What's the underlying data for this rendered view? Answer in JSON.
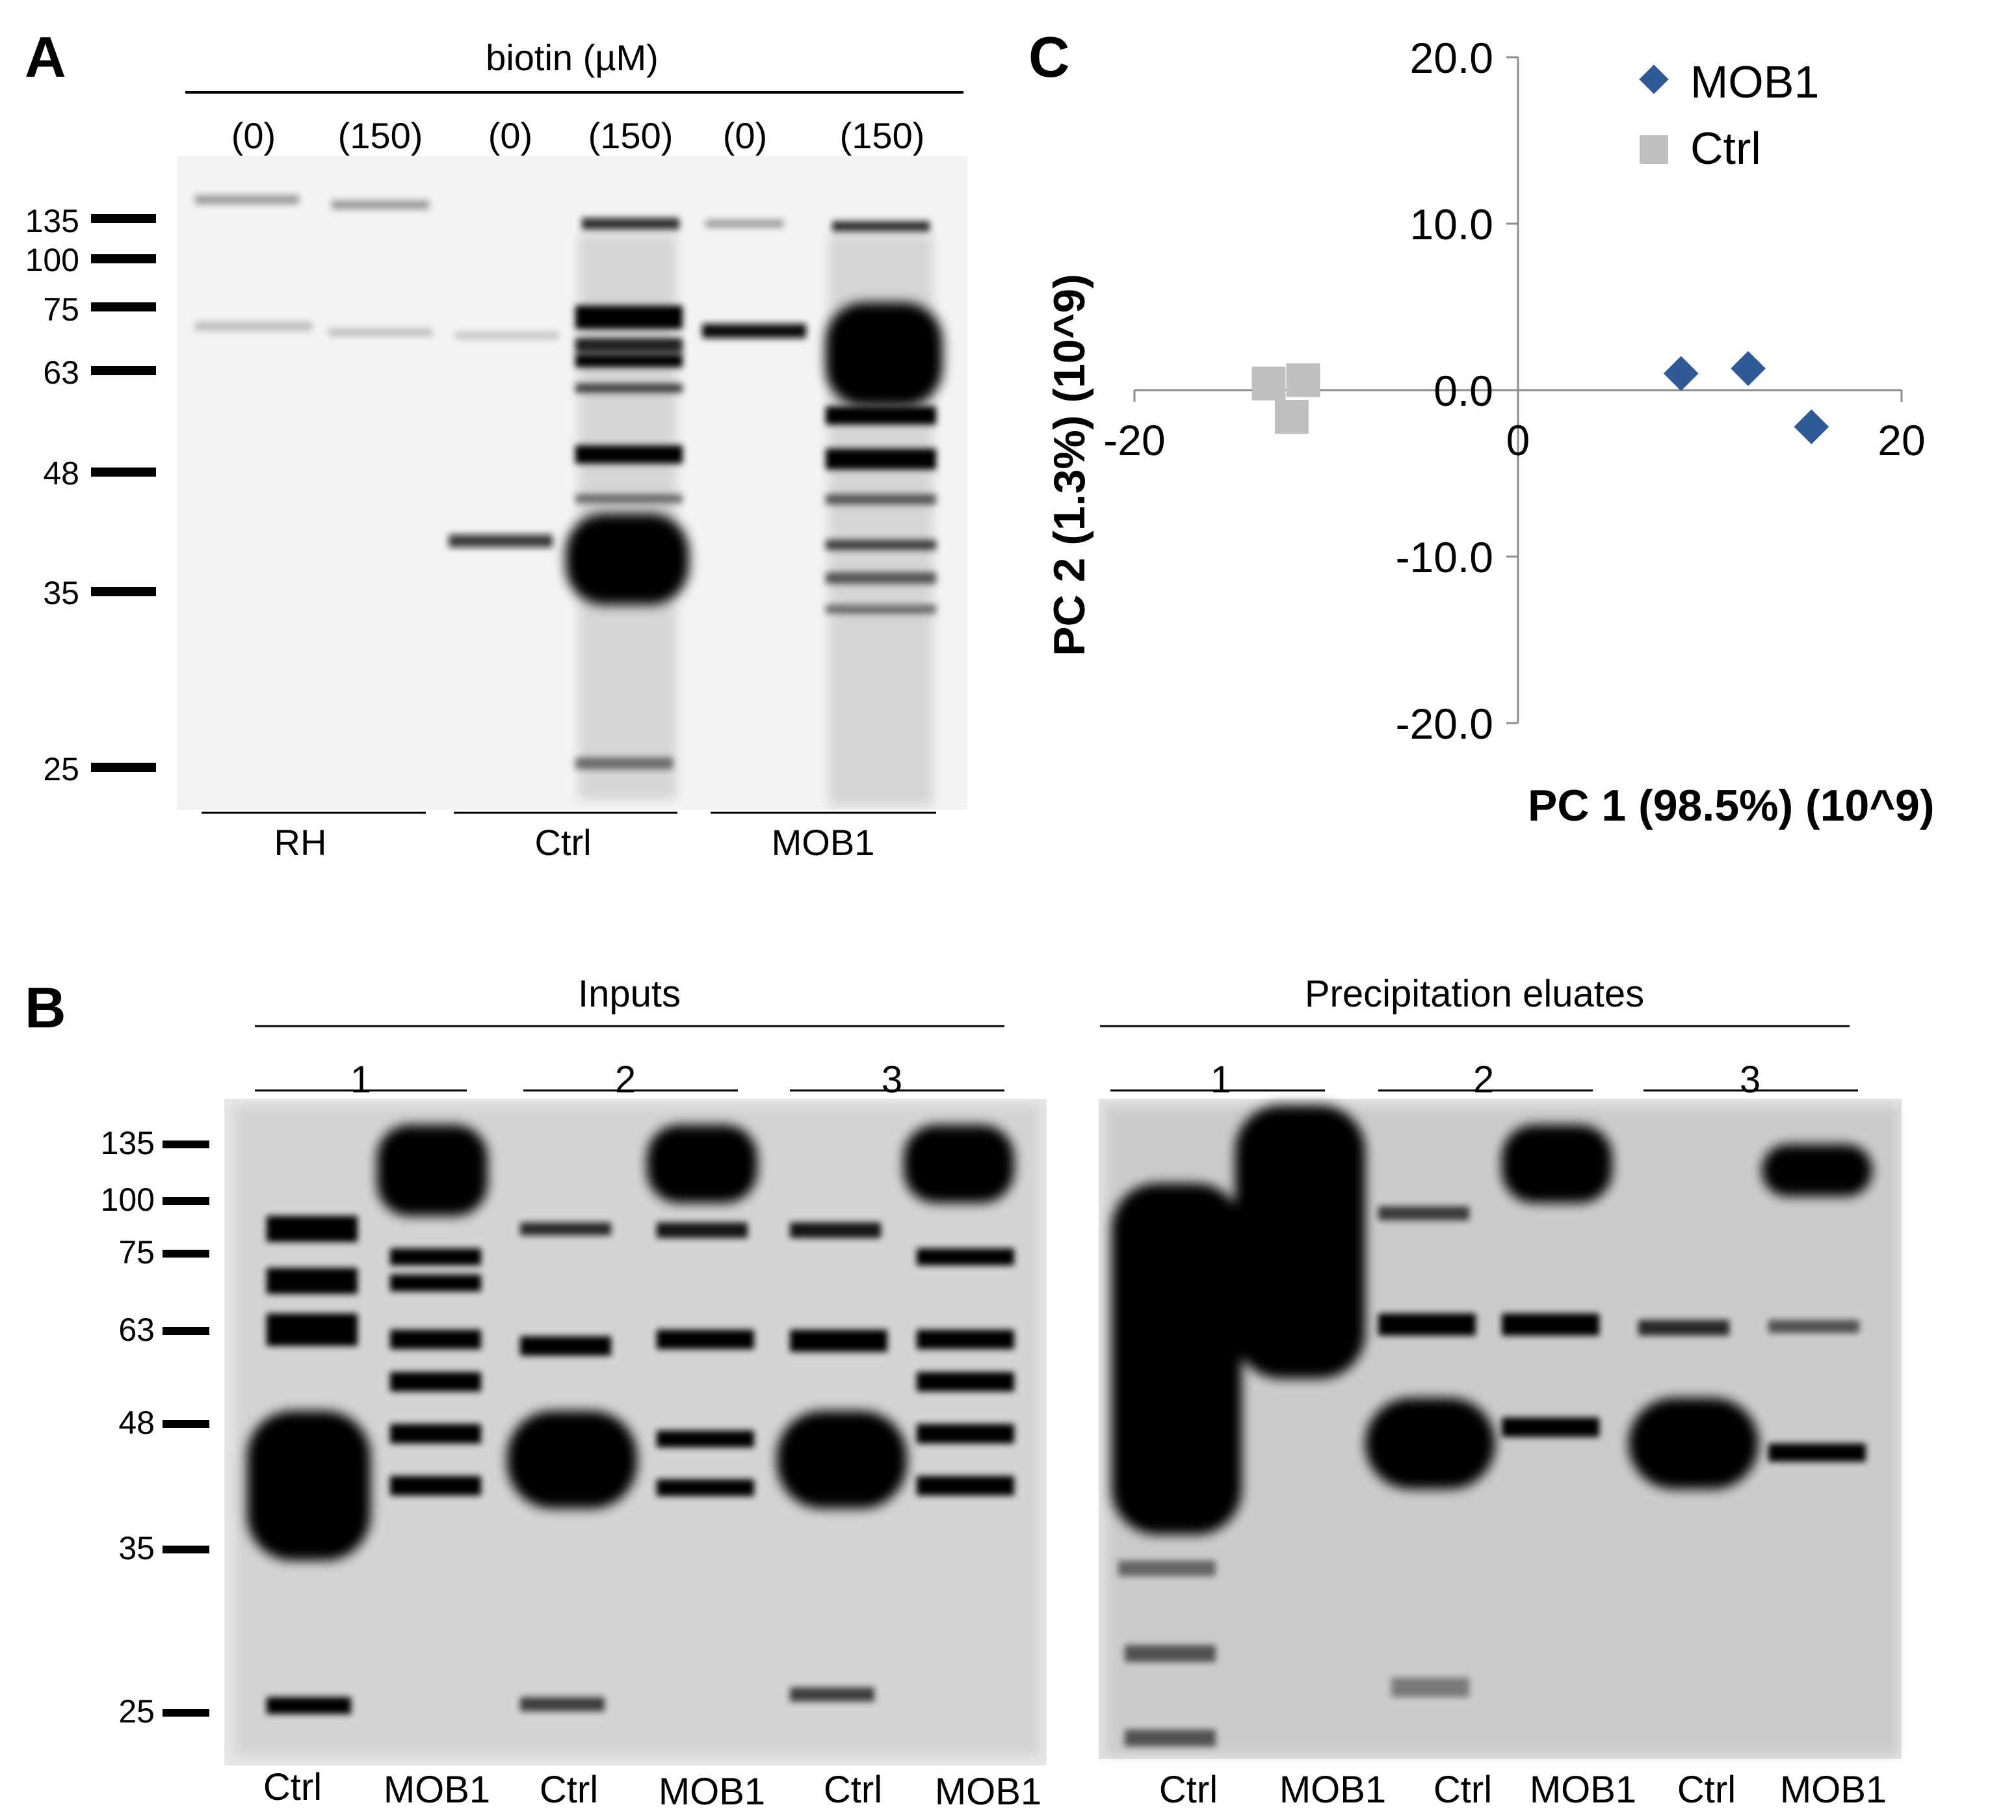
{
  "panels": {
    "a": {
      "label": "A",
      "treatment_label": "biotin (µM)",
      "lane_doses": [
        "(0)",
        "(150)",
        "(0)",
        "(150)",
        "(0)",
        "(150)"
      ],
      "mw_markers": [
        "135",
        "100",
        "75",
        "63",
        "48",
        "35",
        "25"
      ],
      "groups": [
        "RH",
        "Ctrl",
        "MOB1"
      ]
    },
    "b": {
      "label": "B",
      "mw_markers": [
        "135",
        "100",
        "75",
        "63",
        "48",
        "35",
        "25"
      ],
      "blots": [
        {
          "title": "Inputs",
          "replicates": [
            "1",
            "2",
            "3"
          ],
          "lanes": [
            "Ctrl",
            "MOB1",
            "Ctrl",
            "MOB1",
            "Ctrl",
            "MOB1"
          ]
        },
        {
          "title": "Precipitation eluates",
          "replicates": [
            "1",
            "2",
            "3"
          ],
          "lanes": [
            "Ctrl",
            "MOB1",
            "Ctrl",
            "MOB1",
            "Ctrl",
            "MOB1"
          ]
        }
      ]
    },
    "c": {
      "label": "C"
    }
  },
  "chart_data": {
    "type": "scatter",
    "title": "",
    "xlabel": "PC 1 (98.5%) (10^9)",
    "ylabel": "PC 2 (1.3%) (10^9)",
    "xlim": [
      -20,
      20
    ],
    "ylim": [
      -20,
      20
    ],
    "x_ticks": [
      "-20",
      "0",
      "20"
    ],
    "y_ticks": [
      "20.0",
      "10.0",
      "0.0",
      "-10.0",
      "-20.0"
    ],
    "legend_position": "top-right",
    "series": [
      {
        "name": "MOB1",
        "marker": "diamond",
        "color": "#2e5b97",
        "points": [
          {
            "x": 8.5,
            "y": 1.0
          },
          {
            "x": 12.0,
            "y": 1.3
          },
          {
            "x": 15.3,
            "y": -2.2
          }
        ]
      },
      {
        "name": "Ctrl",
        "marker": "square",
        "color": "#bfbfbf",
        "points": [
          {
            "x": -13.0,
            "y": 0.4
          },
          {
            "x": -11.2,
            "y": 0.6
          },
          {
            "x": -11.8,
            "y": -1.6
          }
        ]
      }
    ]
  }
}
